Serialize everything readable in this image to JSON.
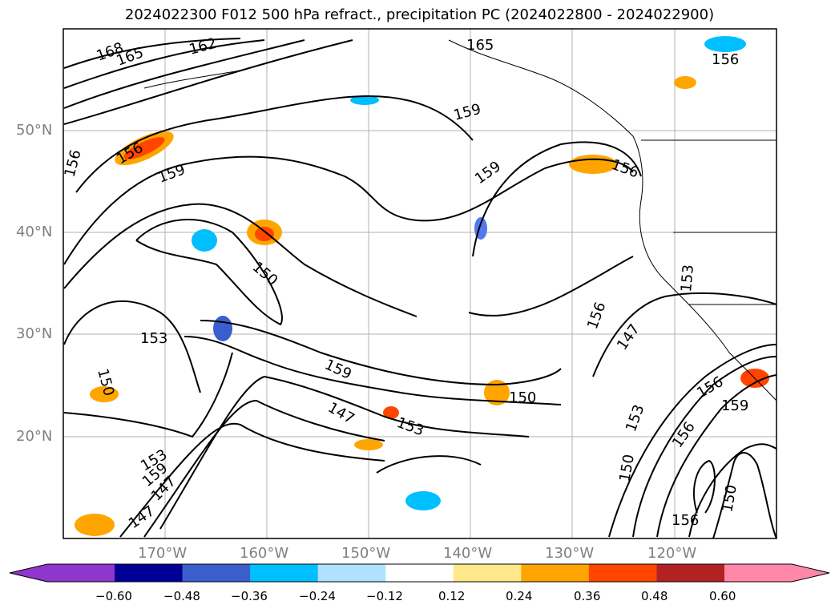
{
  "title": "2024022300 F012 500 hPa refract., precipitation PC (2024022800 - 2024022900)",
  "latitude_labels": [
    "50°N",
    "40°N",
    "30°N",
    "20°N"
  ],
  "longitude_labels": [
    "170°W",
    "160°W",
    "150°W",
    "140°W",
    "130°W",
    "120°W"
  ],
  "contour_labels": [
    "168",
    "165",
    "162",
    "165",
    "156",
    "159",
    "156",
    "156",
    "159",
    "159",
    "156",
    "153",
    "150",
    "153",
    "156",
    "147",
    "150",
    "159",
    "150",
    "147",
    "153",
    "156",
    "159",
    "153",
    "156",
    "150",
    "153",
    "159",
    "147",
    "147",
    "150",
    "156"
  ],
  "colorbar": {
    "ticks": [
      "−0.60",
      "−0.48",
      "−0.36",
      "−0.24",
      "−0.12",
      "0.12",
      "0.24",
      "0.36",
      "0.48",
      "0.60"
    ],
    "colors": [
      "#8f36cc",
      "#000096",
      "#3a5fcd",
      "#00bfff",
      "#b0e2ff",
      "#ffffff",
      "#ffe88a",
      "#ffa500",
      "#ff4500",
      "#b22222",
      "#ff88aa"
    ]
  }
}
